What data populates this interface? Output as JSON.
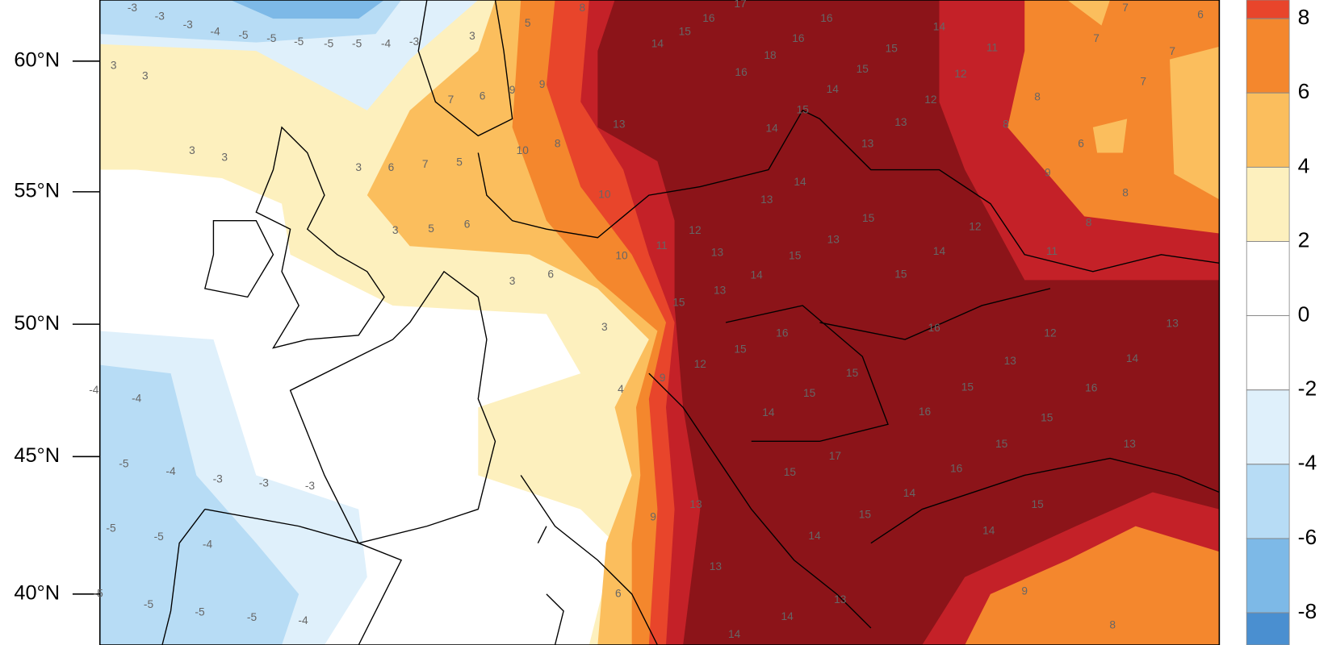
{
  "map": {
    "lat_labels": [
      "60°N",
      "55°N",
      "50°N",
      "45°N",
      "40°N"
    ],
    "colorbar": {
      "levels": [
        8,
        6,
        4,
        2,
        0,
        -2,
        -4,
        -6,
        -8
      ],
      "colors": [
        "#e8452b",
        "#f4872d",
        "#fbbe5d",
        "#fdf0be",
        "#ffffff",
        "#ffffff",
        "#dff0fb",
        "#b7dcf5",
        "#7db9e7",
        "#4a8fd0"
      ]
    },
    "point_labels": [
      -3,
      -3,
      -3,
      -4,
      -5,
      -5,
      -5,
      -5,
      -5,
      -4,
      -3,
      3,
      3,
      3,
      3,
      3,
      6,
      7,
      5,
      7,
      6,
      3,
      5,
      8,
      9,
      9,
      8,
      10,
      3,
      5,
      6,
      3,
      6,
      3,
      4,
      9,
      10,
      10,
      11,
      13,
      14,
      15,
      16,
      17,
      16,
      18,
      16,
      16,
      14,
      15,
      14,
      13,
      14,
      13,
      15,
      13,
      15,
      14,
      15,
      14,
      13,
      15,
      16,
      15,
      15,
      16,
      15,
      13,
      14,
      12,
      16,
      15,
      13,
      17,
      15,
      14,
      15,
      15,
      14,
      14,
      13,
      9,
      8,
      14,
      14,
      13,
      9,
      6,
      16,
      15,
      14,
      15,
      15,
      12,
      12,
      11,
      8,
      8,
      9,
      8,
      6,
      7,
      7,
      7,
      7,
      6,
      13,
      8,
      12,
      11,
      13,
      16,
      -4,
      -4,
      -5,
      -4,
      -3,
      -3,
      -3,
      -5,
      -5,
      -4,
      -5,
      -5,
      -5,
      -5,
      -4,
      12,
      13,
      15,
      14,
      13,
      12
    ]
  }
}
